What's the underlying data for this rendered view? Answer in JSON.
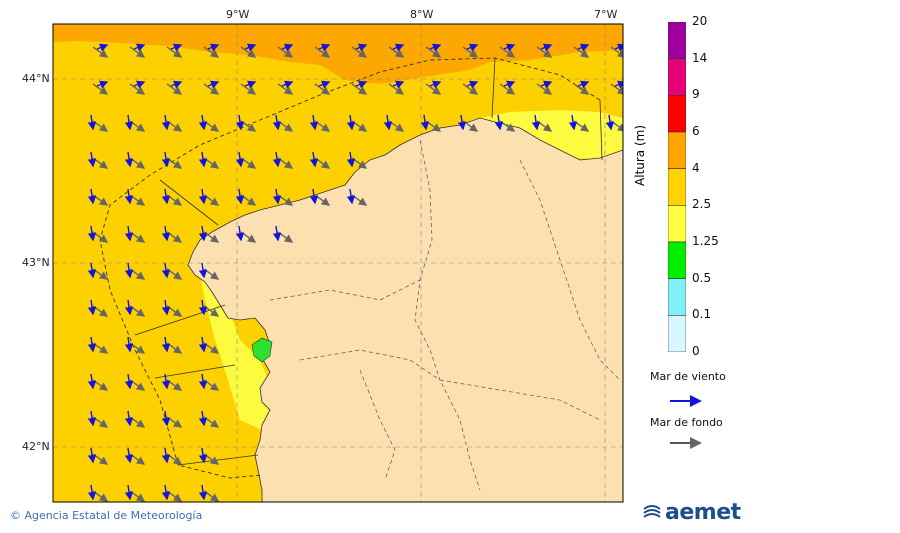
{
  "map": {
    "lon_labels": [
      "9°W",
      "8°W",
      "7°W"
    ],
    "lat_labels": [
      "44°N",
      "43°N",
      "42°N"
    ],
    "sea_color": "#fdd000",
    "land_color": "#fde0b0",
    "band_colors": {
      "4-6": "#fca800",
      "2.5-4": "#fdd000",
      "1.25-2.5": "#fdfb40",
      "0.5-1.25": "#2ee02e"
    }
  },
  "legend": {
    "title": "Altura (m)",
    "levels": [
      "20",
      "14",
      "9",
      "6",
      "4",
      "2.5",
      "1.25",
      "0.5",
      "0.1",
      "0"
    ],
    "colors": [
      "#a000a0",
      "#e6007a",
      "#ff0000",
      "#ffa500",
      "#ffd200",
      "#ffff40",
      "#00ee00",
      "#80f0f8",
      "#d8f8ff"
    ]
  },
  "keys": {
    "wind_sea": {
      "label": "Mar de viento",
      "color": "#1414dc"
    },
    "swell": {
      "label": "Mar de fondo",
      "color": "#505050"
    }
  },
  "footer": {
    "credit": "© Agencia Estatal de Meteorología",
    "logo_text": "aemet"
  }
}
